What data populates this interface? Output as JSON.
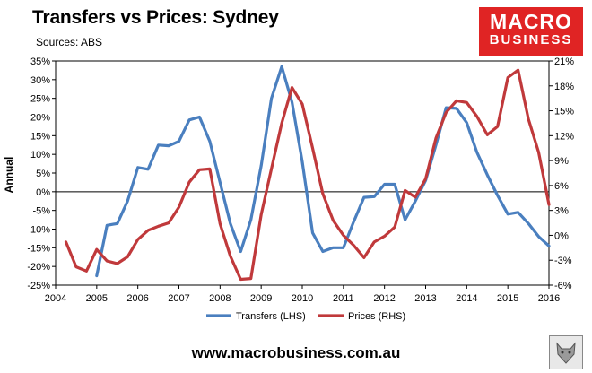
{
  "header": {
    "title": "Transfers vs Prices: Sydney",
    "subtitle": "Sources: ABS"
  },
  "logo": {
    "line1": "MACRO",
    "line2": "BUSINESS",
    "bg": "#e02424"
  },
  "footer": {
    "url": "www.macrobusiness.com.au"
  },
  "chart_data": {
    "type": "line",
    "ylabel": "Annual",
    "xlim": [
      2004,
      2016
    ],
    "x_ticks": [
      "2004",
      "2005",
      "2006",
      "2007",
      "2008",
      "2009",
      "2010",
      "2011",
      "2012",
      "2013",
      "2014",
      "2015",
      "2016"
    ],
    "ylim_left": [
      -25,
      35
    ],
    "y_ticks_left": [
      "-25%",
      "-20%",
      "-15%",
      "-10%",
      "-5%",
      "0%",
      "5%",
      "10%",
      "15%",
      "20%",
      "25%",
      "30%",
      "35%"
    ],
    "ylim_right": [
      -6,
      21
    ],
    "y_ticks_right": [
      "-6%",
      "-3%",
      "0%",
      "3%",
      "6%",
      "9%",
      "12%",
      "15%",
      "18%",
      "21%"
    ],
    "grid": false,
    "legend": "bottom",
    "series": [
      {
        "name": "Transfers (LHS)",
        "axis": "left",
        "color": "#4a7fbf",
        "x": [
          2005.0,
          2005.25,
          2005.5,
          2005.75,
          2006.0,
          2006.25,
          2006.5,
          2006.75,
          2007.0,
          2007.25,
          2007.5,
          2007.75,
          2008.0,
          2008.25,
          2008.5,
          2008.75,
          2009.0,
          2009.25,
          2009.5,
          2009.75,
          2010.0,
          2010.25,
          2010.5,
          2010.75,
          2011.0,
          2011.25,
          2011.5,
          2011.75,
          2012.0,
          2012.25,
          2012.5,
          2012.75,
          2013.0,
          2013.25,
          2013.5,
          2013.75,
          2014.0,
          2014.25,
          2014.5,
          2014.75,
          2015.0,
          2015.25,
          2015.5,
          2015.75,
          2016.0
        ],
        "y": [
          -22.5,
          -9,
          -8.5,
          -2.5,
          6.5,
          6,
          12.5,
          12.3,
          13.5,
          19.2,
          20,
          13.5,
          2.5,
          -8.5,
          -16,
          -7.5,
          7,
          25,
          33.5,
          24,
          8,
          -11,
          -16,
          -15,
          -15,
          -8,
          -1.5,
          -1.3,
          2,
          2,
          -7.5,
          -2.5,
          3,
          12.5,
          22.5,
          22.3,
          18.5,
          10.5,
          4.5,
          -1,
          -6,
          -5.5,
          -8.5,
          -12,
          -14.5
        ]
      },
      {
        "name": "Prices (RHS)",
        "axis": "right",
        "color": "#c0393b",
        "x": [
          2004.25,
          2004.5,
          2004.75,
          2005.0,
          2005.25,
          2005.5,
          2005.75,
          2006.0,
          2006.25,
          2006.5,
          2006.75,
          2007.0,
          2007.25,
          2007.5,
          2007.75,
          2008.0,
          2008.25,
          2008.5,
          2008.75,
          2009.0,
          2009.25,
          2009.5,
          2009.75,
          2010.0,
          2010.25,
          2010.5,
          2010.75,
          2011.0,
          2011.25,
          2011.5,
          2011.75,
          2012.0,
          2012.25,
          2012.5,
          2012.75,
          2013.0,
          2013.25,
          2013.5,
          2013.75,
          2014.0,
          2014.25,
          2014.5,
          2014.75,
          2015.0,
          2015.25,
          2015.5,
          2015.75,
          2016.0
        ],
        "y": [
          -0.8,
          -3.8,
          -4.3,
          -1.7,
          -3.1,
          -3.4,
          -2.6,
          -0.5,
          0.6,
          1.1,
          1.5,
          3.4,
          6.4,
          7.9,
          8.0,
          1.4,
          -2.5,
          -5.3,
          -5.2,
          2.5,
          8.0,
          13.5,
          17.8,
          15.8,
          10.5,
          5.0,
          1.8,
          0.0,
          -1.2,
          -2.7,
          -0.8,
          -0.1,
          1.0,
          5.4,
          4.6,
          6.8,
          11.7,
          14.8,
          16.2,
          16.0,
          14.3,
          12.1,
          13.1,
          19.0,
          19.9,
          14.0,
          10.0,
          3.7
        ]
      }
    ]
  }
}
